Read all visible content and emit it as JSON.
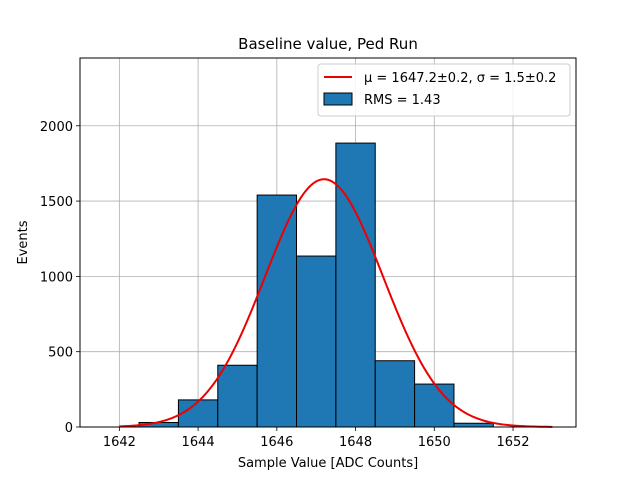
{
  "chart_data": {
    "type": "bar",
    "title": "Baseline value, Ped Run",
    "xlabel": "Sample Value [ADC Counts]",
    "ylabel": "Events",
    "xlim": [
      1641.0,
      1653.6
    ],
    "ylim": [
      0,
      2450
    ],
    "grid": true,
    "xticks": [
      1642,
      1644,
      1646,
      1648,
      1650,
      1652
    ],
    "yticks": [
      0,
      500,
      1000,
      1500,
      2000
    ],
    "bins": [
      {
        "x0": 1641.5,
        "x1": 1642.5,
        "value": 0
      },
      {
        "x0": 1642.5,
        "x1": 1643.5,
        "value": 30
      },
      {
        "x0": 1643.5,
        "x1": 1644.5,
        "value": 180
      },
      {
        "x0": 1644.5,
        "x1": 1645.5,
        "value": 410
      },
      {
        "x0": 1645.5,
        "x1": 1646.5,
        "value": 1540
      },
      {
        "x0": 1646.5,
        "x1": 1647.5,
        "value": 1135
      },
      {
        "x0": 1647.5,
        "x1": 1648.5,
        "value": 1885
      },
      {
        "x0": 1648.5,
        "x1": 1649.5,
        "value": 440
      },
      {
        "x0": 1649.5,
        "x1": 1650.5,
        "value": 285
      },
      {
        "x0": 1650.5,
        "x1": 1651.5,
        "value": 25
      }
    ],
    "fit": {
      "mu": 1647.2,
      "sigma": 1.5,
      "amplitude": 1645,
      "x_range": [
        1642.0,
        1653.0
      ],
      "color": "#ee0000"
    },
    "bar_color": "#1f77b4",
    "legend": {
      "position": "upper right",
      "entries": [
        {
          "kind": "line",
          "label": "μ = 1647.2±0.2, σ = 1.5±0.2",
          "color": "#ee0000"
        },
        {
          "kind": "patch",
          "label": "RMS = 1.43",
          "color": "#1f77b4"
        }
      ]
    }
  }
}
